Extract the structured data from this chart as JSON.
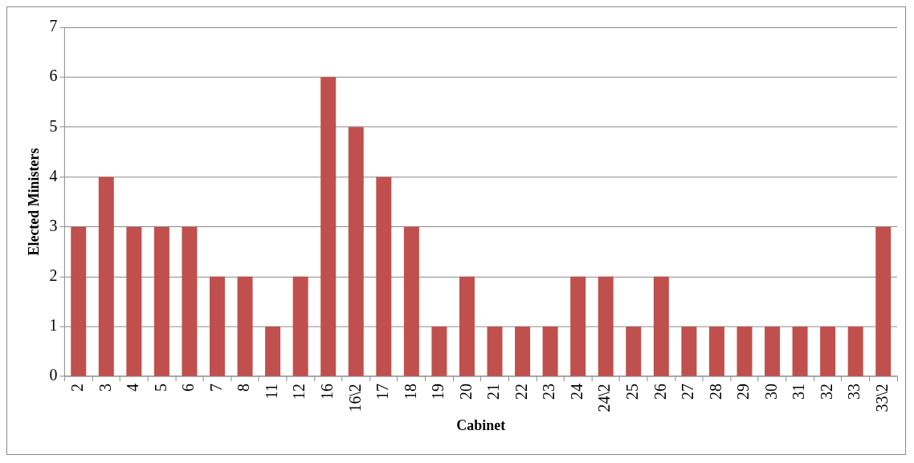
{
  "chart_data": {
    "type": "bar",
    "xlabel": "Cabinet",
    "ylabel": "Elected Ministers",
    "categories": [
      "2",
      "3",
      "4",
      "5",
      "6",
      "7",
      "8",
      "11",
      "12",
      "16",
      "16\\2",
      "17",
      "18",
      "19",
      "20",
      "21",
      "22",
      "23",
      "24",
      "24\\2",
      "25",
      "26",
      "27",
      "28",
      "29",
      "30",
      "31",
      "32",
      "33",
      "33\\2"
    ],
    "values": [
      3,
      4,
      3,
      3,
      3,
      2,
      2,
      1,
      2,
      6,
      5,
      4,
      3,
      1,
      2,
      1,
      1,
      1,
      2,
      2,
      1,
      2,
      1,
      1,
      1,
      1,
      1,
      1,
      1,
      3
    ],
    "color": "#c0504d",
    "ylim": [
      0,
      7
    ],
    "yticks": [
      0,
      1,
      2,
      3,
      4,
      5,
      6,
      7
    ],
    "grid": "y",
    "legend": false
  }
}
